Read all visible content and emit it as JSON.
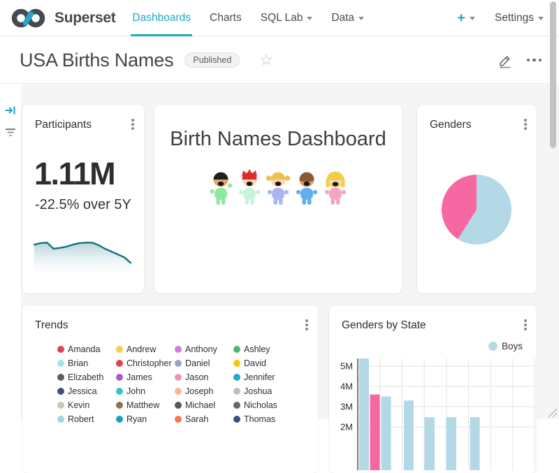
{
  "header": {
    "brand": "Superset",
    "nav_items": [
      {
        "label": "Dashboards",
        "active": true,
        "caret": false
      },
      {
        "label": "Charts",
        "active": false,
        "caret": false
      },
      {
        "label": "SQL Lab",
        "active": false,
        "caret": true
      },
      {
        "label": "Data",
        "active": false,
        "caret": true
      }
    ],
    "plus_label": "+",
    "settings_label": "Settings"
  },
  "title_bar": {
    "title": "USA Births Names",
    "badge": "Published"
  },
  "icons": {
    "star": "☆"
  },
  "colors": {
    "primary": "#20A7C9",
    "boys": "#B3D9E6",
    "girls": "#F668A2",
    "spark_line": "#12727F",
    "spark_fill_top": "#A9CCD4",
    "grid": "#E3E3E3"
  },
  "cards": {
    "participants": {
      "title": "Participants",
      "big_number": "1.11M",
      "delta": "-22.5% over 5Y"
    },
    "header_card": {
      "title": "Birth Names Dashboard",
      "kids": [
        {
          "hair": "#1F1F1F",
          "skin": "#E3A76F",
          "outfit": "#8FE8A2",
          "style": "wave"
        },
        {
          "hair": "#E02B2B",
          "skin": "#F6D7B4",
          "outfit": "#C9F3DC",
          "style": "spiky"
        },
        {
          "hair": "#EEC14F",
          "skin": "#F6D7B4",
          "outfit": "#AAB4F0",
          "style": "pigtails"
        },
        {
          "hair": "#8A5A32",
          "skin": "#D99E66",
          "outfit": "#62AEF2",
          "style": "bowl"
        },
        {
          "hair": "#F4CE3F",
          "skin": "#F6D7B4",
          "outfit": "#F6A4C3",
          "style": "long"
        }
      ]
    },
    "genders": {
      "title": "Genders"
    },
    "trends": {
      "title": "Trends",
      "legend": [
        {
          "name": "Amanda",
          "color": "#E04355"
        },
        {
          "name": "Andrew",
          "color": "#F5CF4F"
        },
        {
          "name": "Anthony",
          "color": "#C685D3"
        },
        {
          "name": "Ashley",
          "color": "#4BB671"
        },
        {
          "name": "Brian",
          "color": "#9FE7E3"
        },
        {
          "name": "Christopher",
          "color": "#E04355"
        },
        {
          "name": "Daniel",
          "color": "#9CA2C7"
        },
        {
          "name": "David",
          "color": "#FCC700"
        },
        {
          "name": "Elizabeth",
          "color": "#5C5C5C"
        },
        {
          "name": "James",
          "color": "#A55EC0"
        },
        {
          "name": "Jason",
          "color": "#EE94A6"
        },
        {
          "name": "Jennifer",
          "color": "#1FA8C9"
        },
        {
          "name": "Jessica",
          "color": "#444E7C"
        },
        {
          "name": "John",
          "color": "#2BC9BE"
        },
        {
          "name": "Joseph",
          "color": "#FBB793"
        },
        {
          "name": "Joshua",
          "color": "#BEBEBE"
        },
        {
          "name": "Kevin",
          "color": "#CEC3B7"
        },
        {
          "name": "Matthew",
          "color": "#8F7253"
        },
        {
          "name": "Michael",
          "color": "#585858"
        },
        {
          "name": "Nicholas",
          "color": "#676767"
        },
        {
          "name": "Robert",
          "color": "#9ED7EA"
        },
        {
          "name": "Ryan",
          "color": "#189FC4"
        },
        {
          "name": "Sarah",
          "color": "#FA7A48"
        },
        {
          "name": "Thomas",
          "color": "#404E7C"
        }
      ]
    },
    "genders_by_state": {
      "title": "Genders by State",
      "legend_label": "Boys"
    }
  },
  "chart_data": [
    {
      "type": "area",
      "title": "Participants 5Y trend sparkline",
      "values": [
        79,
        83,
        84,
        69,
        71,
        74,
        79,
        83,
        84,
        84,
        78,
        69,
        62,
        55,
        48,
        34
      ],
      "note": "relative height 0-100, no visible axes",
      "line_color": "#12727F",
      "fill_top": "#A9CCD4"
    },
    {
      "type": "pie",
      "title": "Genders",
      "slices": [
        {
          "label": "Boys",
          "value": 59,
          "color": "#B3D9E6"
        },
        {
          "label": "Girls",
          "value": 41,
          "color": "#F668A2"
        }
      ]
    },
    {
      "type": "bar",
      "title": "Genders by State",
      "ylim_visible": [
        2,
        5.5
      ],
      "y_ticks": [
        {
          "label": "5M",
          "value": 5
        },
        {
          "label": "4M",
          "value": 4
        },
        {
          "label": "3M",
          "value": 3
        },
        {
          "label": "2M",
          "value": 2
        }
      ],
      "legend": [
        {
          "label": "Boys",
          "color": "#B3D9E6"
        }
      ],
      "grid": true,
      "bars": [
        {
          "value": 5.45,
          "series": "Boys",
          "x": 43,
          "w": 14
        },
        {
          "value": 3.6,
          "series": "Girls",
          "x": 58.5,
          "w": 14
        },
        {
          "value": 3.5,
          "series": "Boys",
          "x": 74.5,
          "w": 14
        },
        {
          "value": 3.3,
          "series": "Boys",
          "x": 107,
          "w": 14
        },
        {
          "value": 2.48,
          "series": "Boys",
          "x": 136.5,
          "w": 14.5
        },
        {
          "value": 2.48,
          "series": "Boys",
          "x": 167.5,
          "w": 14.5
        },
        {
          "value": 2.48,
          "series": "Boys",
          "x": 201.5,
          "w": 14
        }
      ]
    }
  ]
}
